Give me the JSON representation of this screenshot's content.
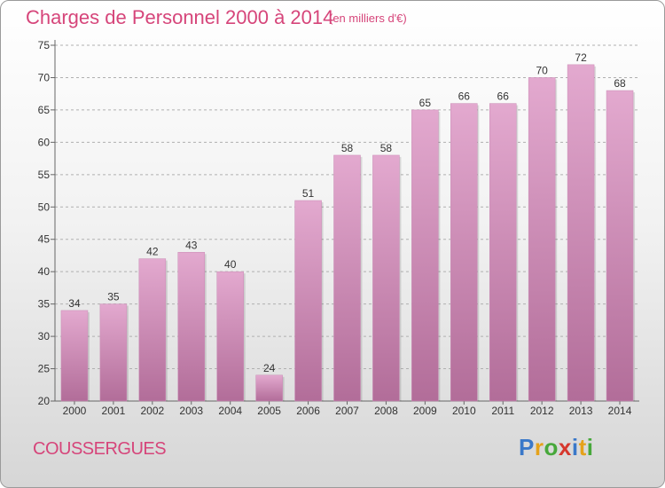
{
  "header": {
    "title": "Charges de Personnel 2000 à 2014",
    "subtitle": "(en milliers d'€)"
  },
  "footer": {
    "commune": "COUSSERGUES",
    "logo_letters": [
      {
        "ch": "P",
        "color": "#3a78c9"
      },
      {
        "ch": "r",
        "color": "#e5a21b"
      },
      {
        "ch": "o",
        "color": "#47a83b"
      },
      {
        "ch": "x",
        "color": "#d6372d"
      },
      {
        "ch": "i",
        "color": "#3a78c9"
      },
      {
        "ch": "t",
        "color": "#e5a21b"
      },
      {
        "ch": "i",
        "color": "#47a83b"
      }
    ]
  },
  "colors": {
    "title": "#d6457a",
    "bar_top": "#e3a9cf",
    "bar_bottom": "#b26d99",
    "grid": "#b0b0b0",
    "text": "#333333"
  },
  "chart_data": {
    "type": "bar",
    "categories": [
      "2000",
      "2001",
      "2002",
      "2003",
      "2004",
      "2005",
      "2006",
      "2007",
      "2008",
      "2009",
      "2010",
      "2011",
      "2012",
      "2013",
      "2014"
    ],
    "values": [
      34,
      35,
      42,
      43,
      40,
      24,
      51,
      58,
      58,
      65,
      66,
      66,
      70,
      72,
      68
    ],
    "title": "Charges de Personnel 2000 à 2014",
    "subtitle": "(en milliers d'€)",
    "xlabel": "",
    "ylabel": "",
    "ylim": [
      20,
      75
    ],
    "yticks": [
      20,
      25,
      30,
      35,
      40,
      45,
      50,
      55,
      60,
      65,
      70,
      75
    ],
    "grid": true,
    "data_labels": true
  }
}
